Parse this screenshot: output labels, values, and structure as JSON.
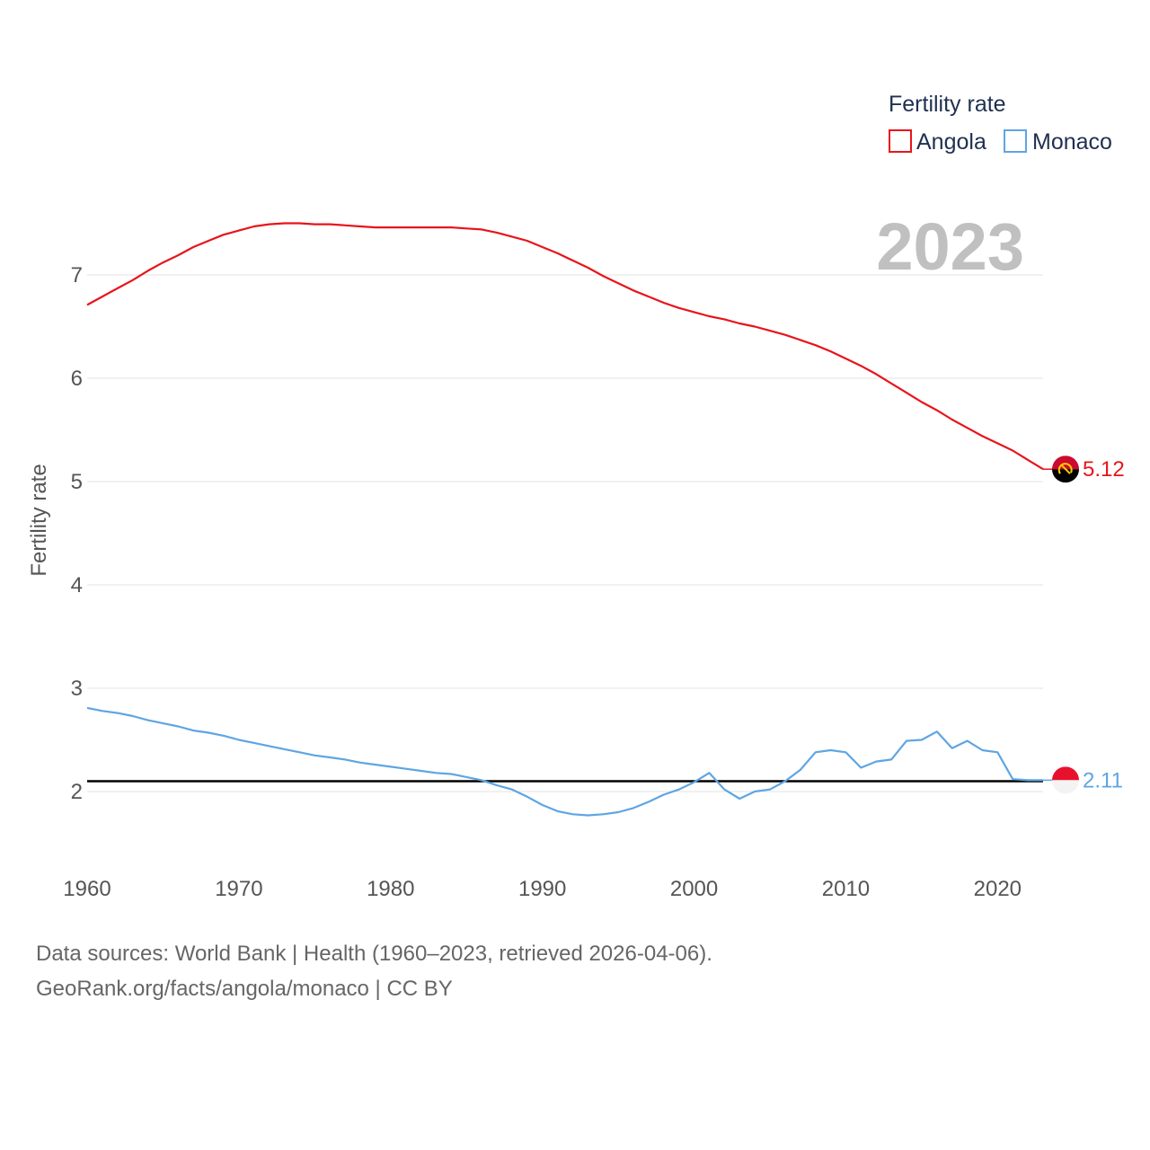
{
  "chart_data": {
    "type": "line",
    "ylabel": "Fertility rate",
    "xlabel": "",
    "legend_title": "Fertility rate",
    "legend_placement": "top-right",
    "current_year_label": "2023",
    "xlim": [
      1960,
      2023
    ],
    "ylim": [
      1.5,
      7.8
    ],
    "x_ticks": [
      1960,
      1970,
      1980,
      1990,
      2000,
      2010,
      2020
    ],
    "y_ticks": [
      2,
      3,
      4,
      5,
      6,
      7
    ],
    "grid": true,
    "reference_line": {
      "y": 2.1,
      "color": "#000000"
    },
    "x": [
      1960,
      1961,
      1962,
      1963,
      1964,
      1965,
      1966,
      1967,
      1968,
      1969,
      1970,
      1971,
      1972,
      1973,
      1974,
      1975,
      1976,
      1977,
      1978,
      1979,
      1980,
      1981,
      1982,
      1983,
      1984,
      1985,
      1986,
      1987,
      1988,
      1989,
      1990,
      1991,
      1992,
      1993,
      1994,
      1995,
      1996,
      1997,
      1998,
      1999,
      2000,
      2001,
      2002,
      2003,
      2004,
      2005,
      2006,
      2007,
      2008,
      2009,
      2010,
      2011,
      2012,
      2013,
      2014,
      2015,
      2016,
      2017,
      2018,
      2019,
      2020,
      2021,
      2022,
      2023
    ],
    "series": [
      {
        "name": "Angola",
        "color": "#e8141b",
        "end_label": "5.12",
        "flag": "angola-flag",
        "values": [
          6.71,
          6.79,
          6.87,
          6.95,
          7.04,
          7.12,
          7.19,
          7.27,
          7.33,
          7.39,
          7.43,
          7.47,
          7.49,
          7.5,
          7.5,
          7.49,
          7.49,
          7.48,
          7.47,
          7.46,
          7.46,
          7.46,
          7.46,
          7.46,
          7.46,
          7.45,
          7.44,
          7.41,
          7.37,
          7.33,
          7.27,
          7.21,
          7.14,
          7.07,
          6.99,
          6.92,
          6.85,
          6.79,
          6.73,
          6.68,
          6.64,
          6.6,
          6.57,
          6.53,
          6.5,
          6.46,
          6.42,
          6.37,
          6.32,
          6.26,
          6.19,
          6.12,
          6.04,
          5.95,
          5.86,
          5.77,
          5.69,
          5.6,
          5.52,
          5.44,
          5.37,
          5.3,
          5.21,
          5.12
        ]
      },
      {
        "name": "Monaco",
        "color": "#5ea5e3",
        "end_label": "2.11",
        "flag": "monaco-flag",
        "values": [
          2.81,
          2.78,
          2.76,
          2.73,
          2.69,
          2.66,
          2.63,
          2.59,
          2.57,
          2.54,
          2.5,
          2.47,
          2.44,
          2.41,
          2.38,
          2.35,
          2.33,
          2.31,
          2.28,
          2.26,
          2.24,
          2.22,
          2.2,
          2.18,
          2.17,
          2.14,
          2.11,
          2.06,
          2.02,
          1.95,
          1.87,
          1.81,
          1.78,
          1.77,
          1.78,
          1.8,
          1.84,
          1.9,
          1.97,
          2.02,
          2.09,
          2.18,
          2.02,
          1.93,
          2.0,
          2.02,
          2.1,
          2.21,
          2.38,
          2.4,
          2.38,
          2.23,
          2.29,
          2.31,
          2.49,
          2.5,
          2.58,
          2.42,
          2.49,
          2.4,
          2.38,
          2.12,
          2.11,
          2.11
        ]
      }
    ]
  },
  "footer": {
    "sources": "Data sources: World Bank | Health (1960–2023, retrieved 2026-04-06).",
    "attribution": "GeoRank.org/facts/angola/monaco | CC BY"
  }
}
